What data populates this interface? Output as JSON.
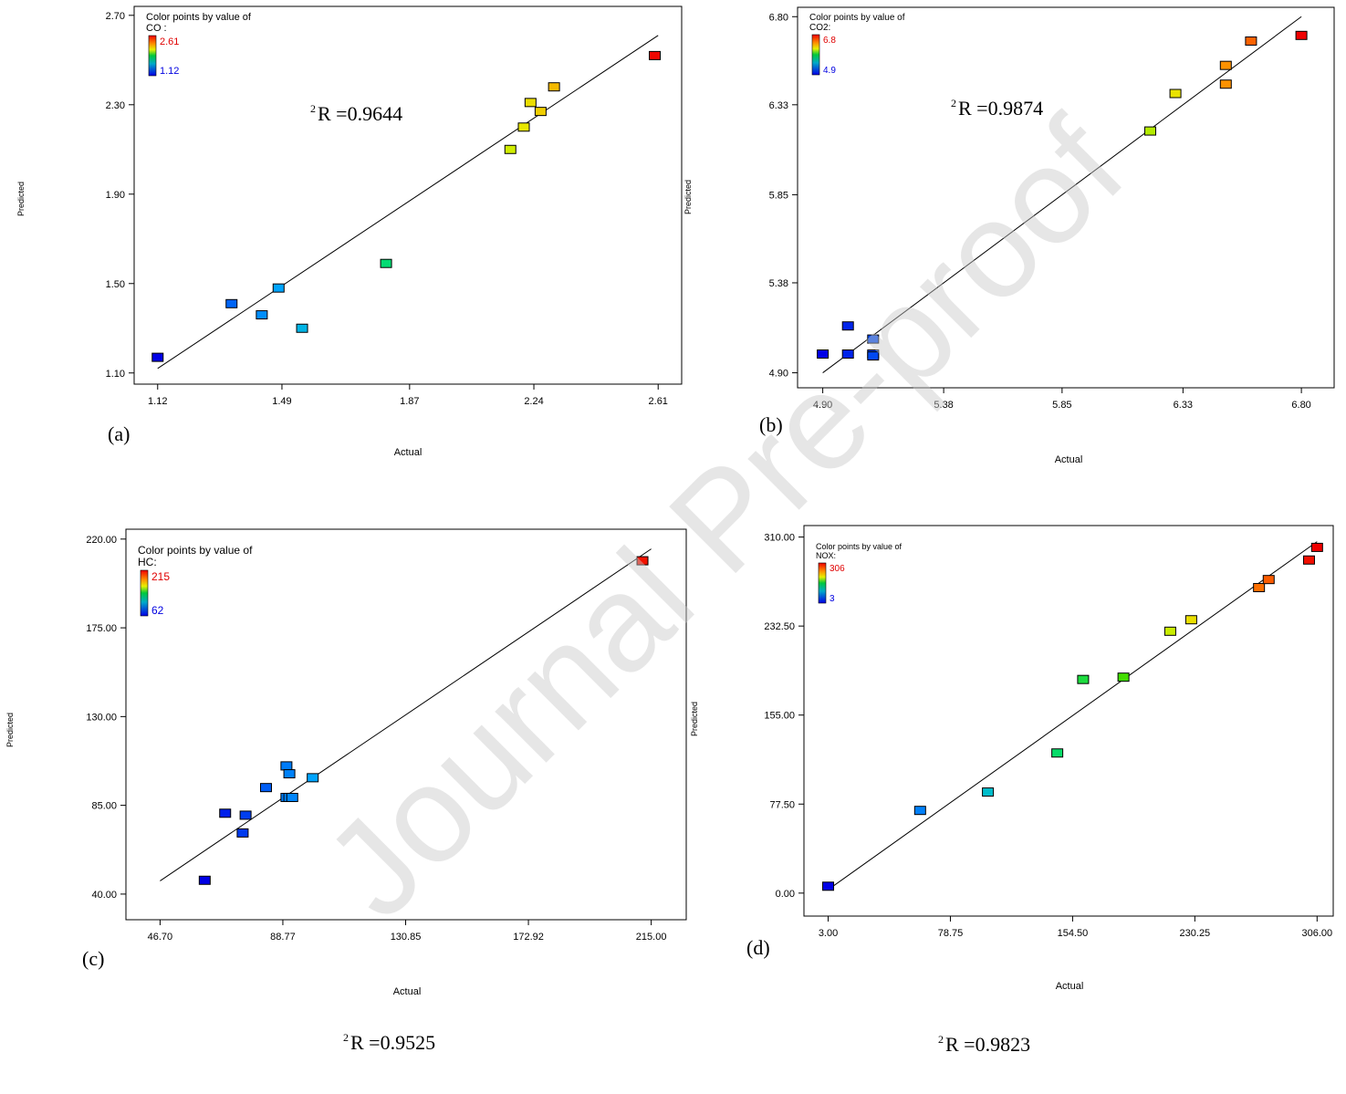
{
  "watermark": "Journal Pre-proof",
  "chart_data": [
    {
      "type": "scatter",
      "panel_label": "(a)",
      "xlabel": "Actual",
      "ylabel": "Predicted",
      "xlim": [
        1.05,
        2.68
      ],
      "ylim": [
        1.05,
        2.74
      ],
      "xticks": [
        "1.12",
        "1.49",
        "1.87",
        "2.24",
        "2.61"
      ],
      "yticks": [
        "1.10",
        "1.50",
        "1.90",
        "2.30",
        "2.70"
      ],
      "legend": {
        "title": "Color points by value of",
        "variable": "CO :",
        "max": "2.61",
        "min": "1.12"
      },
      "color_range": [
        1.12,
        2.61
      ],
      "r2_text": "R =0.9644",
      "r2_sup": "2",
      "fit_line": [
        [
          1.12,
          1.12
        ],
        [
          2.61,
          2.61
        ]
      ],
      "points": [
        {
          "x": 1.12,
          "y": 1.17
        },
        {
          "x": 1.34,
          "y": 1.41
        },
        {
          "x": 1.43,
          "y": 1.36
        },
        {
          "x": 1.48,
          "y": 1.48
        },
        {
          "x": 1.55,
          "y": 1.3
        },
        {
          "x": 1.8,
          "y": 1.59
        },
        {
          "x": 2.17,
          "y": 2.1
        },
        {
          "x": 2.21,
          "y": 2.2
        },
        {
          "x": 2.23,
          "y": 2.31
        },
        {
          "x": 2.26,
          "y": 2.27
        },
        {
          "x": 2.3,
          "y": 2.38
        },
        {
          "x": 2.6,
          "y": 2.52
        }
      ]
    },
    {
      "type": "scatter",
      "panel_label": "(b)",
      "xlabel": "Actual",
      "ylabel": "Predicted",
      "xlim": [
        4.8,
        6.93
      ],
      "ylim": [
        4.82,
        6.85
      ],
      "xticks": [
        "4.90",
        "5.38",
        "5.85",
        "6.33",
        "6.80"
      ],
      "yticks": [
        "4.90",
        "5.38",
        "5.85",
        "6.33",
        "6.80"
      ],
      "legend": {
        "title": "Color points by value of",
        "variable": "CO2:",
        "max": "6.8",
        "min": "4.9"
      },
      "color_range": [
        4.9,
        6.8
      ],
      "r2_text": "R =0.9874",
      "r2_sup": "2",
      "fit_line": [
        [
          4.9,
          4.9
        ],
        [
          6.8,
          6.8
        ]
      ],
      "points": [
        {
          "x": 4.9,
          "y": 5.0
        },
        {
          "x": 5.0,
          "y": 5.0
        },
        {
          "x": 5.0,
          "y": 5.15
        },
        {
          "x": 5.1,
          "y": 5.08
        },
        {
          "x": 5.1,
          "y": 5.0
        },
        {
          "x": 5.1,
          "y": 4.99
        },
        {
          "x": 6.2,
          "y": 6.19
        },
        {
          "x": 6.3,
          "y": 6.39
        },
        {
          "x": 6.5,
          "y": 6.54
        },
        {
          "x": 6.5,
          "y": 6.44
        },
        {
          "x": 6.6,
          "y": 6.67
        },
        {
          "x": 6.8,
          "y": 6.7
        }
      ]
    },
    {
      "type": "scatter",
      "panel_label": "(c)",
      "xlabel": "Actual",
      "ylabel": "Predicted",
      "xlim": [
        35,
        227
      ],
      "ylim": [
        27,
        225
      ],
      "xticks": [
        "46.70",
        "88.77",
        "130.85",
        "172.92",
        "215.00"
      ],
      "yticks": [
        "40.00",
        "85.00",
        "130.00",
        "175.00",
        "220.00"
      ],
      "legend": {
        "title": "Color points by value of",
        "variable": "HC:",
        "max": "215",
        "min": "62"
      },
      "color_range": [
        62,
        215
      ],
      "r2_text": "R =0.9525",
      "r2_sup": "2",
      "fit_line": [
        [
          46.7,
          46.7
        ],
        [
          215,
          215
        ]
      ],
      "points": [
        {
          "x": 62,
          "y": 47
        },
        {
          "x": 69,
          "y": 81
        },
        {
          "x": 76,
          "y": 80
        },
        {
          "x": 75,
          "y": 71
        },
        {
          "x": 83,
          "y": 94
        },
        {
          "x": 90,
          "y": 89
        },
        {
          "x": 91,
          "y": 89
        },
        {
          "x": 92,
          "y": 89
        },
        {
          "x": 90,
          "y": 105
        },
        {
          "x": 91,
          "y": 101
        },
        {
          "x": 99,
          "y": 99
        },
        {
          "x": 212,
          "y": 209
        }
      ]
    },
    {
      "type": "scatter",
      "panel_label": "(d)",
      "xlabel": "Actual",
      "ylabel": "Predicted",
      "xlim": [
        -12,
        316
      ],
      "ylim": [
        -20,
        320
      ],
      "xticks": [
        "3.00",
        "78.75",
        "154.50",
        "230.25",
        "306.00"
      ],
      "yticks": [
        "0.00",
        "77.50",
        "155.00",
        "232.50",
        "310.00"
      ],
      "legend": {
        "title": "Color points by value of",
        "variable": "NOX:",
        "max": "306",
        "min": "3"
      },
      "color_range": [
        3,
        306
      ],
      "r2_text": "R =0.9823",
      "r2_sup": "2",
      "fit_line": [
        [
          3,
          3
        ],
        [
          306,
          306
        ]
      ],
      "points": [
        {
          "x": 3,
          "y": 6
        },
        {
          "x": 60,
          "y": 72
        },
        {
          "x": 102,
          "y": 88
        },
        {
          "x": 145,
          "y": 122
        },
        {
          "x": 161,
          "y": 186
        },
        {
          "x": 186,
          "y": 188
        },
        {
          "x": 215,
          "y": 228
        },
        {
          "x": 228,
          "y": 238
        },
        {
          "x": 270,
          "y": 266
        },
        {
          "x": 276,
          "y": 273
        },
        {
          "x": 301,
          "y": 290
        },
        {
          "x": 306,
          "y": 301
        }
      ]
    }
  ]
}
